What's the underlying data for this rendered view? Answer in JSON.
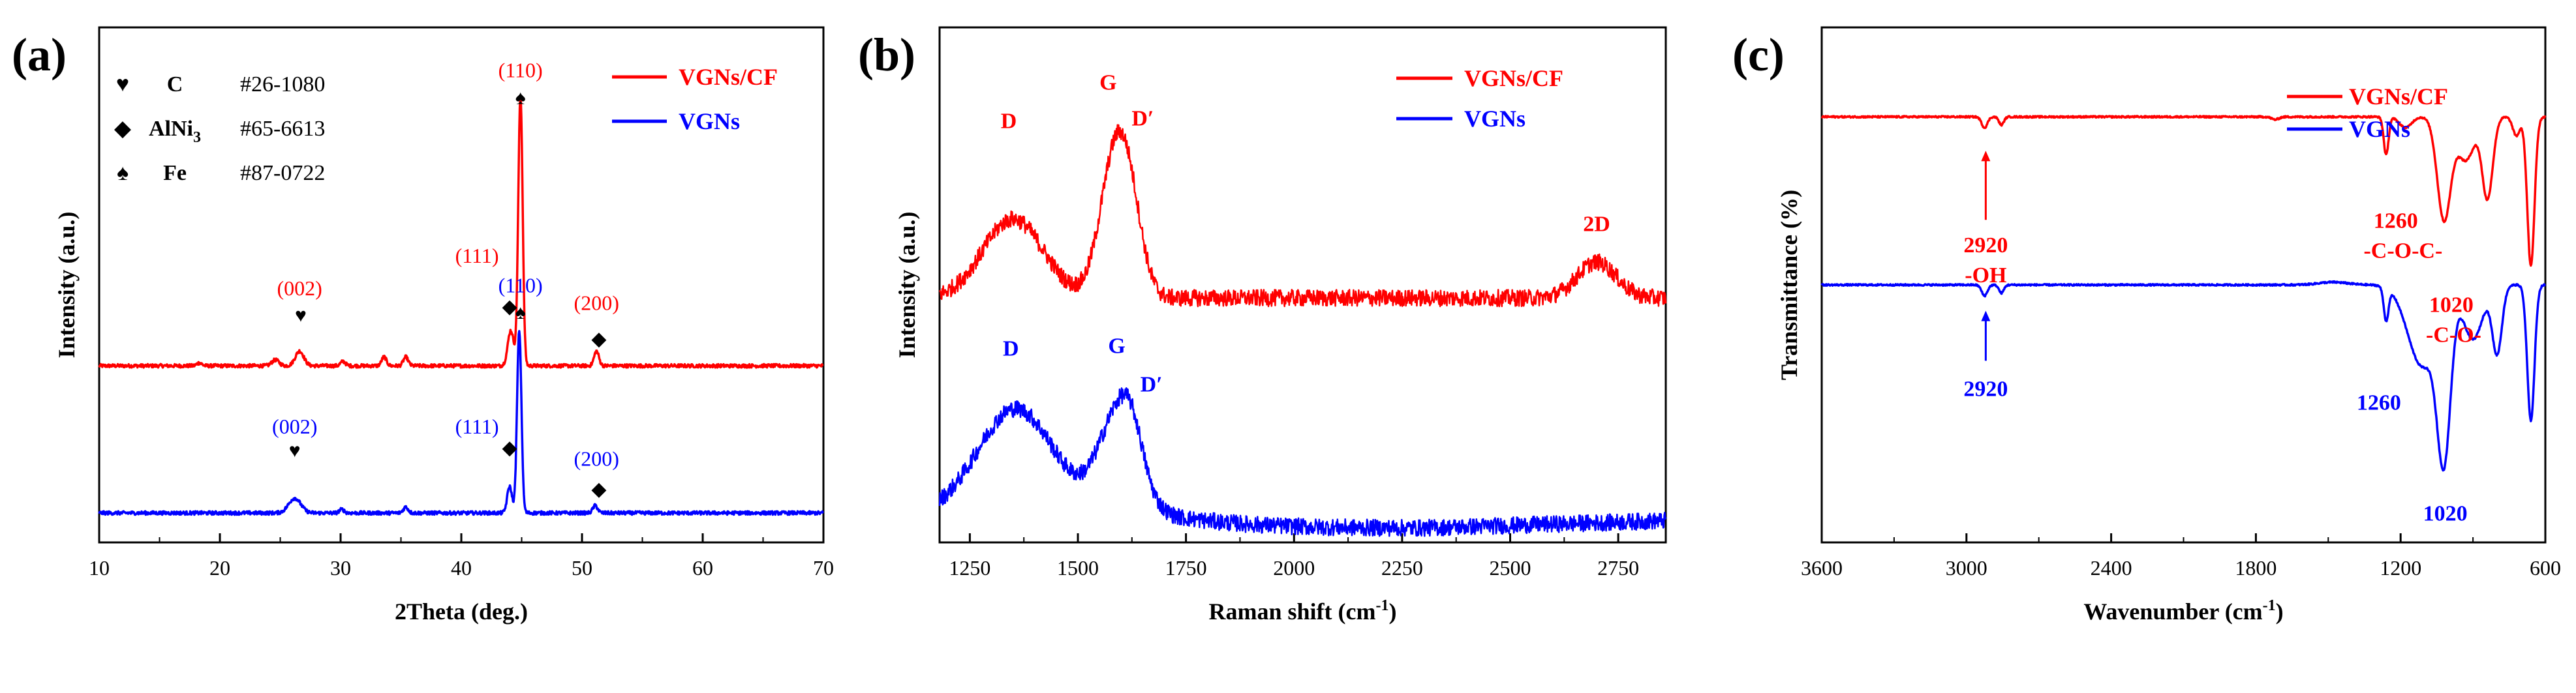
{
  "chart_data": [
    {
      "type": "line",
      "panel_label": "(a)",
      "xlabel": "2Theta (deg.)",
      "ylabel": "Intensity (a.u.)",
      "xlim": [
        10,
        70
      ],
      "xticks": [
        10,
        20,
        30,
        40,
        50,
        60,
        70
      ],
      "series": [
        {
          "name": "VGNs/CF",
          "color": "#ff0000",
          "baseline": 0.6,
          "peaks": [
            [
              26.6,
              0.05,
              0.35
            ],
            [
              44.1,
              0.12,
              0.25
            ],
            [
              44.9,
              0.92,
              0.18
            ],
            [
              51.2,
              0.05,
              0.2
            ],
            [
              33.6,
              0.03,
              0.2
            ],
            [
              35.4,
              0.03,
              0.2
            ],
            [
              24.6,
              0.02,
              0.3
            ],
            [
              30.2,
              0.015,
              0.2
            ],
            [
              18.3,
              0.01,
              0.2
            ]
          ]
        },
        {
          "name": "VGNs",
          "color": "#0000ff",
          "baseline": 0.1,
          "peaks": [
            [
              26.2,
              0.05,
              0.5
            ],
            [
              44.0,
              0.09,
              0.2
            ],
            [
              44.8,
              0.62,
              0.18
            ],
            [
              51.1,
              0.025,
              0.2
            ],
            [
              35.4,
              0.02,
              0.2
            ],
            [
              30.1,
              0.012,
              0.2
            ]
          ]
        }
      ],
      "legend": {
        "position": "top-right",
        "entries": [
          {
            "label": "VGNs/CF",
            "color": "#ff0000"
          },
          {
            "label": "VGNs",
            "color": "#0000ff"
          }
        ]
      },
      "phase_legend": [
        {
          "symbol": "♥",
          "name": "C",
          "card": "#26-1080"
        },
        {
          "symbol": "◆",
          "name": "AlNi",
          "subscript": "3",
          "card": "#65-6613"
        },
        {
          "symbol": "♠",
          "name": "Fe",
          "card": "#87-0722"
        }
      ],
      "annotations": [
        {
          "text": "(110)",
          "color": "#ff0000",
          "x": 44.9,
          "y": 1.58
        },
        {
          "text": "(002)",
          "color": "#ff0000",
          "x": 26.6,
          "y": 0.84
        },
        {
          "text": "(111)",
          "color": "#ff0000",
          "x": 41.3,
          "y": 0.95
        },
        {
          "text": "(200)",
          "color": "#ff0000",
          "x": 51.2,
          "y": 0.79
        },
        {
          "text": "(110)",
          "color": "#0000ff",
          "x": 44.9,
          "y": 0.85
        },
        {
          "text": "(002)",
          "color": "#0000ff",
          "x": 26.2,
          "y": 0.37
        },
        {
          "text": "(111)",
          "color": "#0000ff",
          "x": 41.3,
          "y": 0.37
        },
        {
          "text": "(200)",
          "color": "#0000ff",
          "x": 51.2,
          "y": 0.26
        }
      ],
      "markers": [
        {
          "symbol": "♠",
          "x": 44.9,
          "y": 1.49
        },
        {
          "symbol": "♥",
          "x": 26.7,
          "y": 0.75
        },
        {
          "symbol": "◆",
          "x": 44.0,
          "y": 0.78
        },
        {
          "symbol": "◆",
          "x": 51.4,
          "y": 0.67
        },
        {
          "symbol": "♠",
          "x": 44.9,
          "y": 0.76
        },
        {
          "symbol": "♥",
          "x": 26.2,
          "y": 0.29
        },
        {
          "symbol": "◆",
          "x": 44.0,
          "y": 0.3
        },
        {
          "symbol": "◆",
          "x": 51.4,
          "y": 0.16
        }
      ],
      "ylim": [
        0,
        1.75
      ]
    },
    {
      "type": "line",
      "panel_label": "(b)",
      "xlabel": "Raman shift (cm",
      "xlabel_superscript": "-1",
      "xlabel_suffix": ")",
      "ylabel": "Intensity (a.u.)",
      "xlim": [
        1180,
        2860
      ],
      "xticks": [
        1250,
        1500,
        1750,
        2000,
        2250,
        2500,
        2750
      ],
      "series": [
        {
          "name": "VGNs/CF",
          "color": "#ff0000",
          "baseline": 1.02,
          "peaks": [
            [
              1350,
              0.33,
              70
            ],
            [
              1585,
              0.55,
              35
            ],
            [
              1622,
              0.25,
              30
            ],
            [
              2700,
              0.15,
              45
            ]
          ]
        },
        {
          "name": "VGNs",
          "color": "#0000ff",
          "baseline": 0.06,
          "peaks": [
            [
              1355,
              0.4,
              85
            ],
            [
              1595,
              0.4,
              45
            ],
            [
              1625,
              0.12,
              25
            ]
          ]
        }
      ],
      "legend": {
        "position": "top-right",
        "entries": [
          {
            "label": "VGNs/CF",
            "color": "#ff0000"
          },
          {
            "label": "VGNs",
            "color": "#0000ff"
          }
        ]
      },
      "annotations": [
        {
          "text": "D",
          "color": "#ff0000",
          "x": 1340,
          "y": 1.73
        },
        {
          "text": "G",
          "color": "#ff0000",
          "x": 1570,
          "y": 1.89
        },
        {
          "text": "D′",
          "color": "#ff0000",
          "x": 1650,
          "y": 1.74
        },
        {
          "text": "2D",
          "color": "#ff0000",
          "x": 2700,
          "y": 1.3
        },
        {
          "text": "D",
          "color": "#0000ff",
          "x": 1345,
          "y": 0.78
        },
        {
          "text": "G",
          "color": "#0000ff",
          "x": 1590,
          "y": 0.79
        },
        {
          "text": "D′",
          "color": "#0000ff",
          "x": 1670,
          "y": 0.63
        }
      ],
      "ylim": [
        0,
        2.15
      ]
    },
    {
      "type": "line",
      "panel_label": "(c)",
      "xlabel": "Wavenumber (cm",
      "xlabel_superscript": "-1",
      "xlabel_suffix": ")",
      "ylabel": "Transmittance (%)",
      "xlim": [
        3600,
        600
      ],
      "xticks": [
        3600,
        3000,
        2400,
        1800,
        1200,
        600
      ],
      "series": [
        {
          "name": "VGNs/CF",
          "color": "#ff0000",
          "baseline": 1.57,
          "dips": [
            [
              2925,
              0.04,
              12
            ],
            [
              2855,
              0.03,
              10
            ],
            [
              1720,
              0.01,
              15
            ],
            [
              1260,
              0.14,
              10
            ],
            [
              1180,
              0.04,
              25
            ],
            [
              1020,
              0.38,
              28
            ],
            [
              930,
              0.16,
              35
            ],
            [
              840,
              0.3,
              22
            ],
            [
              720,
              0.07,
              15
            ],
            [
              660,
              0.55,
              15
            ]
          ]
        },
        {
          "name": "VGNs",
          "color": "#0000ff",
          "baseline": 0.95,
          "dips": [
            [
              2925,
              0.04,
              12
            ],
            [
              2855,
              0.03,
              10
            ],
            [
              1260,
              0.12,
              10
            ],
            [
              1110,
              0.3,
              60
            ],
            [
              1020,
              0.58,
              28
            ],
            [
              900,
              0.2,
              40
            ],
            [
              800,
              0.25,
              20
            ],
            [
              660,
              0.5,
              15
            ]
          ]
        }
      ],
      "legend": {
        "position": "top-right",
        "entries": [
          {
            "label": "VGNs/CF",
            "color": "#ff0000"
          },
          {
            "label": "VGNs",
            "color": "#0000ff"
          }
        ]
      },
      "annotations": [
        {
          "text": "2920",
          "color": "#ff0000",
          "x": 2920,
          "y": 1.07
        },
        {
          "text": "-OH",
          "color": "#ff0000",
          "x": 2920,
          "y": 0.96
        },
        {
          "text": "1260",
          "color": "#ff0000",
          "x": 1220,
          "y": 1.16
        },
        {
          "text": "-C-O-C-",
          "color": "#ff0000",
          "x": 1190,
          "y": 1.05
        },
        {
          "text": "1020",
          "color": "#ff0000",
          "x": 990,
          "y": 0.85
        },
        {
          "text": "-C-O-",
          "color": "#ff0000",
          "x": 980,
          "y": 0.74
        },
        {
          "text": "2920",
          "color": "#0000ff",
          "x": 2920,
          "y": 0.54
        },
        {
          "text": "1260",
          "color": "#0000ff",
          "x": 1290,
          "y": 0.49
        },
        {
          "text": "1020",
          "color": "#0000ff",
          "x": 1015,
          "y": 0.08
        }
      ],
      "arrows": [
        {
          "color": "#ff0000",
          "x": 2920,
          "from": 1.19,
          "to": 1.44
        },
        {
          "color": "#0000ff",
          "x": 2920,
          "from": 0.67,
          "to": 0.85
        }
      ],
      "ylim": [
        0,
        1.9
      ]
    }
  ]
}
